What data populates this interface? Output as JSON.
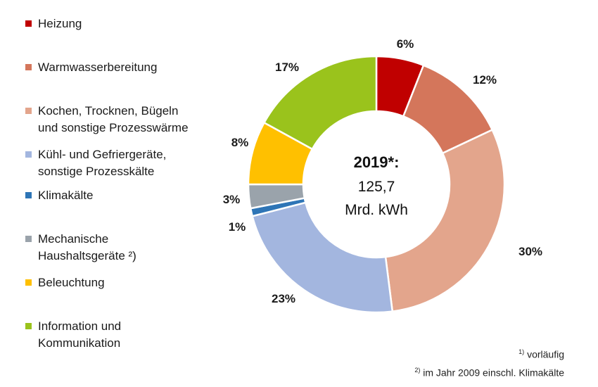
{
  "chart_data": {
    "type": "pie",
    "center": {
      "year": "2019*:",
      "value": "125,7",
      "unit": "Mrd. kWh"
    },
    "categories": [
      "Heizung",
      "Warmwasserbereitung",
      "Kochen, Trocknen, Bügeln\nund sonstige Prozesswärme",
      "Kühl- und Gefriergeräte,\nsonstige Prozesskälte",
      "Klimakälte",
      "Mechanische\nHaushaltsgeräte ²)",
      "Beleuchtung",
      "Information und\nKommunikation"
    ],
    "values": [
      6,
      12,
      30,
      23,
      1,
      3,
      8,
      17
    ],
    "value_labels": [
      "6%",
      "12%",
      "30%",
      "23%",
      "1%",
      "3%",
      "8%",
      "17%"
    ],
    "colors": [
      "#c00000",
      "#d4765b",
      "#e3a58c",
      "#a3b6df",
      "#2e75b6",
      "#9aa3ab",
      "#ffc000",
      "#9ac31c"
    ],
    "legend_position": "left"
  },
  "footnotes": [
    {
      "mark": "1)",
      "text": "vorläufig"
    },
    {
      "mark": "2)",
      "text": "im Jahr 2009 einschl. Klimakälte"
    }
  ]
}
